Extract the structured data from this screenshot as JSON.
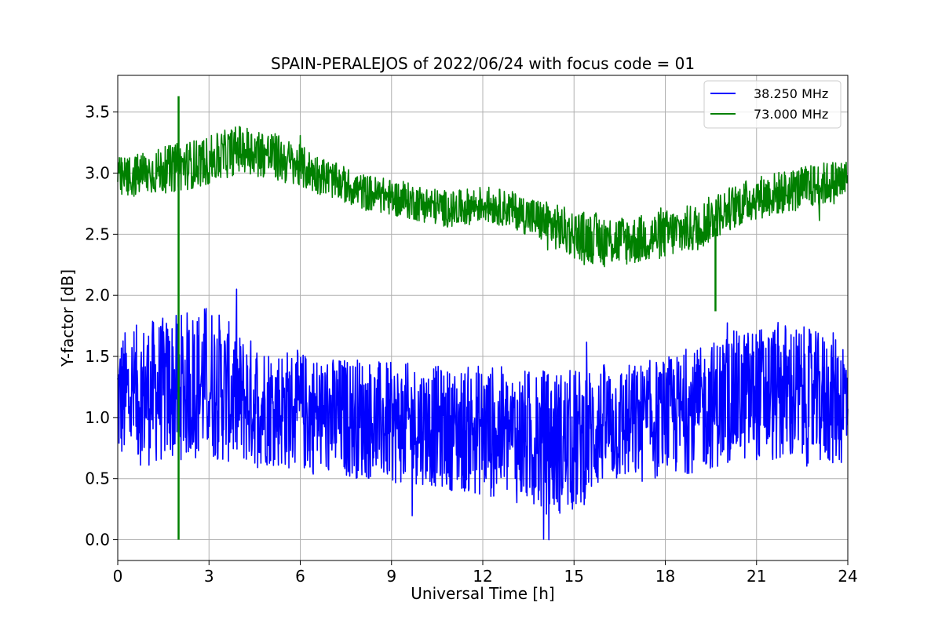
{
  "chart_data": {
    "type": "line",
    "title": "SPAIN-PERALEJOS of 2022/06/24 with focus code = 01",
    "xlabel": "Universal Time [h]",
    "ylabel": "Y-factor [dB]",
    "xlim": [
      0,
      24
    ],
    "ylim": [
      -0.17,
      3.8
    ],
    "xticks": [
      0,
      3,
      6,
      9,
      12,
      15,
      18,
      21,
      24
    ],
    "yticks": [
      0.0,
      0.5,
      1.0,
      1.5,
      2.0,
      2.5,
      3.0,
      3.5
    ],
    "xtick_labels": [
      "0",
      "3",
      "6",
      "9",
      "12",
      "15",
      "18",
      "21",
      "24"
    ],
    "ytick_labels": [
      "0.0",
      "0.5",
      "1.0",
      "1.5",
      "2.0",
      "2.5",
      "3.0",
      "3.5"
    ],
    "grid": true,
    "legend_position": "top-right",
    "series": [
      {
        "name": "38.250 MHz",
        "color": "#0000ff",
        "x": [
          0,
          1,
          2,
          3,
          4,
          5,
          6,
          7,
          8,
          9,
          10,
          11,
          12,
          13,
          14,
          15,
          16,
          17,
          18,
          19,
          20,
          21,
          22,
          23,
          24
        ],
        "mean": [
          1.15,
          1.2,
          1.25,
          1.3,
          1.15,
          1.1,
          1.05,
          1.0,
          1.0,
          0.95,
          0.95,
          0.9,
          0.9,
          0.85,
          0.8,
          0.8,
          0.95,
          0.95,
          1.0,
          1.05,
          1.15,
          1.2,
          1.2,
          1.15,
          1.15
        ],
        "amplitude": [
          0.55,
          0.6,
          0.6,
          0.65,
          0.55,
          0.5,
          0.5,
          0.5,
          0.5,
          0.5,
          0.5,
          0.5,
          0.55,
          0.55,
          0.6,
          0.6,
          0.5,
          0.5,
          0.5,
          0.5,
          0.55,
          0.55,
          0.6,
          0.55,
          0.55
        ]
      },
      {
        "name": "73.000 MHz",
        "color": "#008000",
        "x": [
          0,
          1,
          2,
          3,
          4,
          5,
          6,
          7,
          8,
          9,
          10,
          11,
          12,
          13,
          14,
          15,
          16,
          17,
          18,
          19,
          20,
          21,
          22,
          23,
          24
        ],
        "mean": [
          2.95,
          3.0,
          3.05,
          3.1,
          3.2,
          3.15,
          3.05,
          2.95,
          2.85,
          2.8,
          2.75,
          2.7,
          2.75,
          2.7,
          2.6,
          2.5,
          2.45,
          2.45,
          2.5,
          2.55,
          2.7,
          2.8,
          2.85,
          2.9,
          2.95
        ],
        "amplitude": [
          0.18,
          0.18,
          0.2,
          0.2,
          0.2,
          0.2,
          0.18,
          0.15,
          0.15,
          0.15,
          0.15,
          0.15,
          0.15,
          0.15,
          0.18,
          0.2,
          0.22,
          0.2,
          0.2,
          0.2,
          0.18,
          0.18,
          0.18,
          0.18,
          0.18
        ]
      }
    ],
    "annotations": [
      {
        "series": "73.000 MHz",
        "x": 2.0,
        "y_min": 0.0,
        "y_max": 3.63
      },
      {
        "series": "73.000 MHz",
        "x": 19.65,
        "y_min": 1.87,
        "y_max": 2.55
      }
    ]
  }
}
